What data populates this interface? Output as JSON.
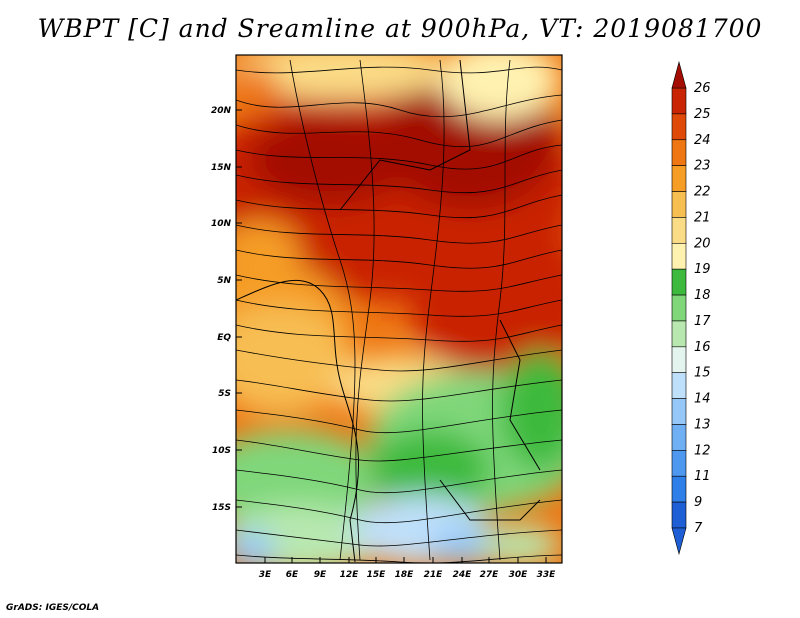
{
  "title": "WBPT [C] and Sreamline at 900hPa, VT: 2019081700",
  "footer": "GrADS: IGES/COLA",
  "map": {
    "y_ticks": [
      "20N",
      "15N",
      "10N",
      "5N",
      "EQ",
      "5S",
      "10S",
      "15S"
    ],
    "x_ticks": [
      "3E",
      "6E",
      "9E",
      "12E",
      "15E",
      "18E",
      "21E",
      "24E",
      "27E",
      "30E",
      "33E"
    ]
  },
  "colorbar": {
    "labels": [
      "7",
      "9",
      "11",
      "12",
      "13",
      "14",
      "15",
      "16",
      "17",
      "18",
      "19",
      "20",
      "21",
      "22",
      "23",
      "24",
      "25",
      "26"
    ],
    "colors": [
      "#1f5fd6",
      "#2f7fe8",
      "#4f98f0",
      "#6fb0f5",
      "#95c8f8",
      "#bfe0fa",
      "#e4f4ef",
      "#b8e8b0",
      "#7fd77a",
      "#3dba3d",
      "#fff2b0",
      "#fbdc86",
      "#f7be52",
      "#f59d25",
      "#ee7613",
      "#e04a08",
      "#c92404",
      "#a30d03"
    ]
  },
  "colors": {
    "hot": "#c92404",
    "warm": "#f7be52",
    "cool": "#7fd77a",
    "cold": "#95c8f8"
  }
}
